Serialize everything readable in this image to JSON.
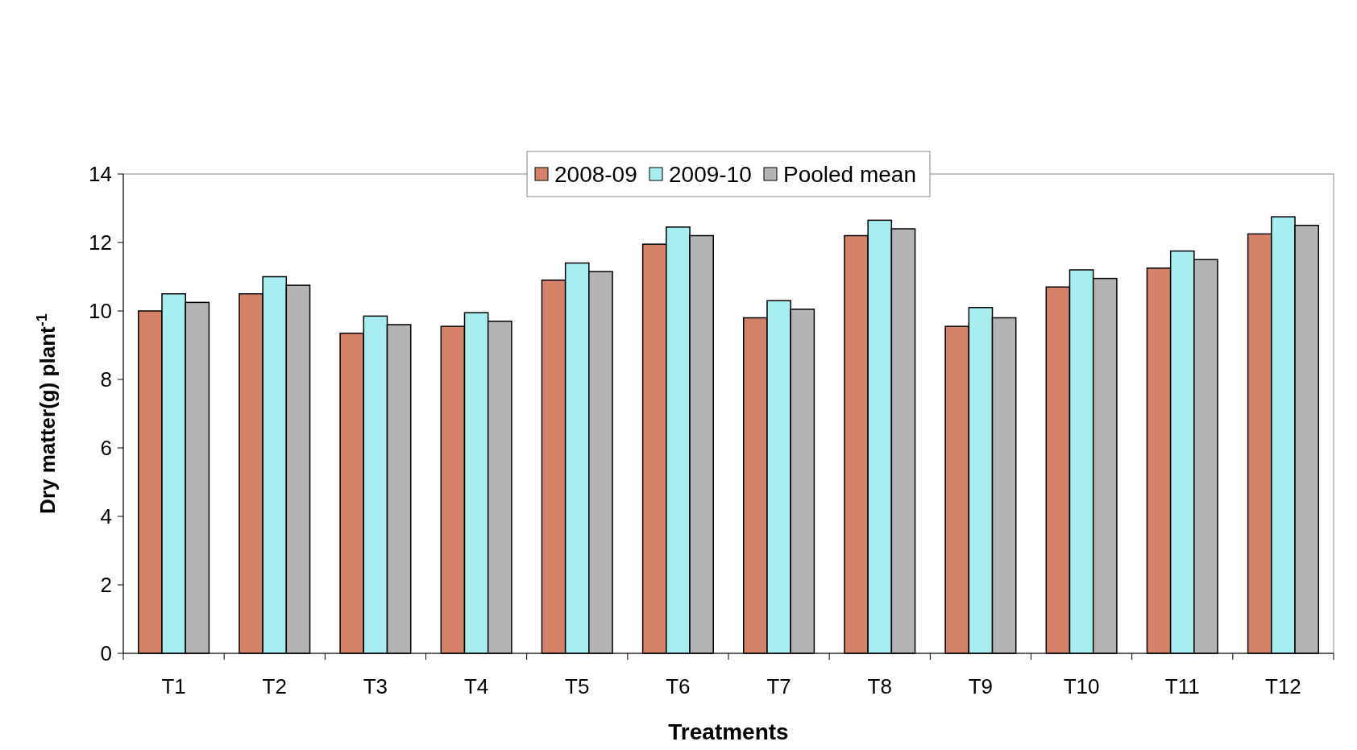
{
  "chart_data": {
    "type": "bar",
    "xlabel": "Treatments",
    "ylabel": "Dry matter(g) plant$^{-1}$",
    "categories": [
      "T1",
      "T2",
      "T3",
      "T4",
      "T5",
      "T6",
      "T7",
      "T8",
      "T9",
      "T10",
      "T11",
      "T12"
    ],
    "series": [
      {
        "name": "2008-09",
        "color": "#d4826a",
        "values": [
          10.0,
          10.5,
          9.35,
          9.55,
          10.9,
          11.95,
          9.8,
          12.2,
          9.55,
          10.7,
          11.25,
          12.25
        ]
      },
      {
        "name": "2009-10",
        "color": "#a8eef0",
        "values": [
          10.5,
          11.0,
          9.85,
          9.95,
          11.4,
          12.45,
          10.3,
          12.65,
          10.1,
          11.2,
          11.75,
          12.75
        ]
      },
      {
        "name": "Pooled mean",
        "color": "#b4b4b4",
        "values": [
          10.25,
          10.75,
          9.6,
          9.7,
          11.15,
          12.2,
          10.05,
          12.4,
          9.8,
          10.95,
          11.5,
          12.5
        ]
      }
    ],
    "ylim": [
      0,
      14
    ],
    "yticks": [
      0,
      2,
      4,
      6,
      8,
      10,
      12,
      14
    ],
    "grid": false,
    "legend": "top"
  }
}
